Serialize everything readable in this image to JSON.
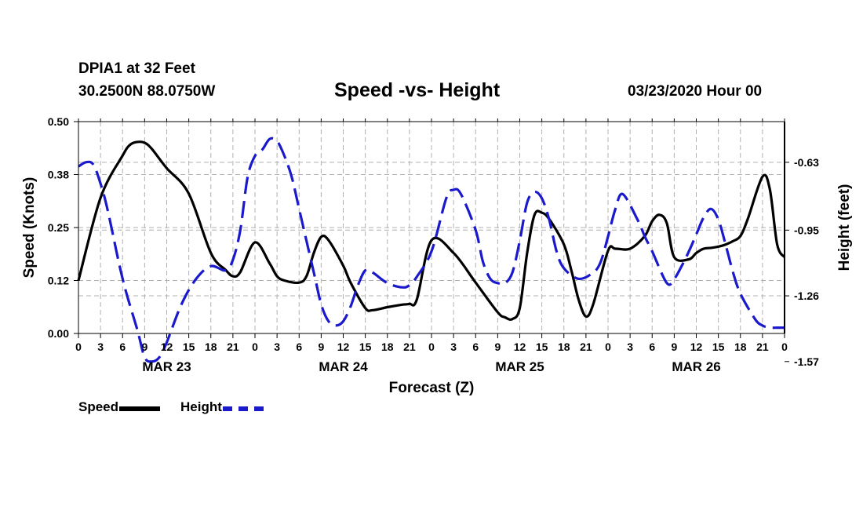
{
  "header": {
    "station": "DPIA1 at 32 Feet",
    "coords": "30.2500N 88.0750W",
    "title": "Speed -vs- Height",
    "datetime": "03/23/2020 Hour 00"
  },
  "legend": {
    "speed_label": "Speed",
    "height_label": "Height"
  },
  "colors": {
    "speed": "#000000",
    "height": "#1a1acc",
    "grid": "#b0b0b0"
  },
  "chart_data": {
    "type": "line",
    "title": "Speed -vs- Height",
    "xlabel": "Forecast (Z)",
    "ylabel": "Speed (Knots)",
    "y2label": "Height (feet)",
    "xlim": [
      0,
      96
    ],
    "ylim": [
      0,
      0.5
    ],
    "y2lim": [
      -1.4375,
      -0.4381
    ],
    "x_tick_step": 3,
    "x_tick_labels": [
      "0",
      "3",
      "6",
      "9",
      "12",
      "15",
      "18",
      "21",
      "0",
      "3",
      "6",
      "9",
      "12",
      "15",
      "18",
      "21",
      "0",
      "3",
      "6",
      "9",
      "12",
      "15",
      "18",
      "21",
      "0",
      "3",
      "6",
      "9",
      "12",
      "15",
      "18",
      "21",
      "0"
    ],
    "day_labels": [
      {
        "label": "MAR 23",
        "x": 12
      },
      {
        "label": "MAR 24",
        "x": 36
      },
      {
        "label": "MAR 25",
        "x": 60
      },
      {
        "label": "MAR 26",
        "x": 84
      }
    ],
    "y_ticks": [
      {
        "value": 0.0,
        "label": "0.00"
      },
      {
        "value": 0.125,
        "label": "0.12"
      },
      {
        "value": 0.25,
        "label": "0.25"
      },
      {
        "value": 0.375,
        "label": "0.38"
      },
      {
        "value": 0.5,
        "label": "0.50"
      }
    ],
    "y2_ticks": [
      {
        "value": -0.63,
        "label": "-0.63"
      },
      {
        "value": -0.95,
        "label": "-0.95"
      },
      {
        "value": -1.26,
        "label": "-1.26"
      },
      {
        "value": -1.57,
        "label": "-1.57"
      }
    ],
    "series": [
      {
        "name": "Speed",
        "axis": "left",
        "style": "solid",
        "x": [
          0,
          3,
          6,
          7,
          8,
          9,
          10,
          12,
          15,
          18,
          20,
          21,
          22,
          24,
          26,
          27,
          28,
          30,
          31,
          32,
          33,
          34,
          36,
          37,
          39,
          40,
          42,
          44,
          45,
          46,
          48,
          51,
          54,
          57,
          58,
          59,
          60,
          61,
          62,
          63,
          64,
          66,
          67,
          68,
          69,
          70,
          72,
          73,
          75,
          77,
          78,
          79,
          80,
          81,
          83,
          84,
          85,
          86,
          87,
          88,
          89,
          90,
          91,
          93,
          94,
          95,
          96
        ],
        "y": [
          0.125,
          0.32,
          0.42,
          0.445,
          0.452,
          0.45,
          0.435,
          0.39,
          0.33,
          0.19,
          0.15,
          0.135,
          0.145,
          0.215,
          0.165,
          0.135,
          0.125,
          0.12,
          0.135,
          0.19,
          0.228,
          0.22,
          0.16,
          0.12,
          0.06,
          0.055,
          0.062,
          0.068,
          0.07,
          0.08,
          0.22,
          0.19,
          0.12,
          0.05,
          0.038,
          0.034,
          0.06,
          0.19,
          0.28,
          0.285,
          0.27,
          0.21,
          0.15,
          0.08,
          0.04,
          0.07,
          0.195,
          0.2,
          0.2,
          0.23,
          0.265,
          0.28,
          0.26,
          0.18,
          0.175,
          0.19,
          0.2,
          0.202,
          0.205,
          0.21,
          0.218,
          0.23,
          0.27,
          0.37,
          0.34,
          0.21,
          0.18
        ]
      },
      {
        "name": "Height",
        "axis": "right",
        "style": "dashed",
        "x": [
          0,
          1,
          2,
          3,
          4,
          6,
          8,
          9,
          10,
          11,
          12,
          14,
          16,
          18,
          20,
          21,
          22,
          23,
          24,
          25,
          26,
          27,
          28,
          29,
          30,
          32,
          33,
          34,
          35,
          36,
          37,
          38,
          39,
          40,
          42,
          44,
          45,
          46,
          48,
          50,
          51,
          52,
          54,
          55,
          56,
          57,
          58,
          59,
          60,
          61,
          62,
          63,
          64,
          65,
          66,
          68,
          70,
          71,
          72,
          73,
          74,
          76,
          77,
          78,
          80,
          81,
          82,
          83,
          84,
          85,
          86,
          87,
          88,
          89,
          90,
          92,
          93,
          94,
          95,
          96
        ],
        "y": [
          -0.65,
          -0.63,
          -0.64,
          -0.73,
          -0.86,
          -1.18,
          -1.42,
          -1.55,
          -1.57,
          -1.55,
          -1.48,
          -1.3,
          -1.18,
          -1.12,
          -1.14,
          -1.09,
          -0.95,
          -0.7,
          -0.6,
          -0.57,
          -0.52,
          -0.53,
          -0.6,
          -0.7,
          -0.85,
          -1.15,
          -1.3,
          -1.38,
          -1.4,
          -1.38,
          -1.31,
          -1.21,
          -1.14,
          -1.15,
          -1.2,
          -1.22,
          -1.21,
          -1.17,
          -1.05,
          -0.8,
          -0.76,
          -0.78,
          -0.95,
          -1.1,
          -1.18,
          -1.2,
          -1.2,
          -1.15,
          -1.0,
          -0.82,
          -0.77,
          -0.8,
          -0.9,
          -1.05,
          -1.13,
          -1.18,
          -1.15,
          -1.1,
          -0.98,
          -0.85,
          -0.78,
          -0.9,
          -0.98,
          -1.05,
          -1.2,
          -1.18,
          -1.12,
          -1.05,
          -0.97,
          -0.89,
          -0.85,
          -0.9,
          -1.02,
          -1.15,
          -1.25,
          -1.37,
          -1.4,
          -1.41,
          -1.41,
          -1.41
        ]
      }
    ]
  }
}
